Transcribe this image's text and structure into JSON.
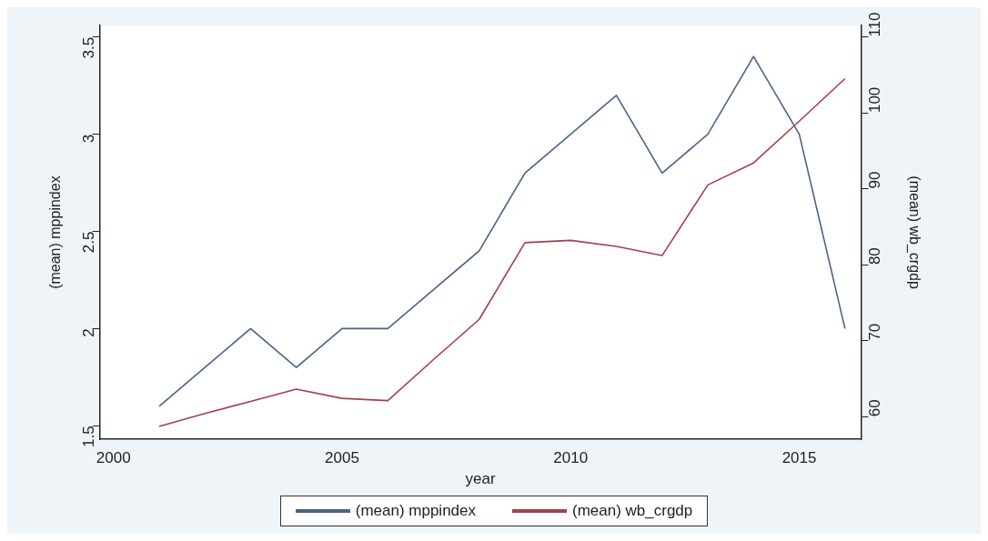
{
  "chart_data": {
    "type": "line",
    "xlabel": "year",
    "ylabel": "(mean) mppindex",
    "y2label": "(mean) wb_crgdp",
    "x": [
      2001,
      2002,
      2003,
      2004,
      2005,
      2006,
      2007,
      2008,
      2009,
      2010,
      2011,
      2012,
      2013,
      2014,
      2015,
      2016
    ],
    "series": [
      {
        "name": "(mean) mppindex",
        "color": "#4a6388",
        "values": [
          1.6,
          1.8,
          2.0,
          1.8,
          2.0,
          2.0,
          2.2,
          2.4,
          2.8,
          3.0,
          3.2,
          2.8,
          3.0,
          3.4,
          3.0,
          2.0
        ]
      },
      {
        "name": "(mean) wb_crgdp",
        "color": "#a0424c",
        "axis": "y2",
        "values": [
          58.7,
          60.4,
          62.0,
          63.6,
          62.4,
          62.1,
          67.5,
          72.8,
          82.9,
          83.2,
          82.4,
          81.2,
          90.5,
          93.4,
          98.9,
          104.5
        ]
      }
    ],
    "xlim": [
      1999.7,
      2016.35
    ],
    "xticks": [
      2000,
      2005,
      2010,
      2015
    ],
    "ylim": [
      1.43,
      3.56
    ],
    "yticks": [
      1.5,
      2,
      2.5,
      3,
      3.5
    ],
    "y2lim": [
      57,
      111.5
    ],
    "y2ticks": [
      60,
      70,
      80,
      90,
      100,
      110
    ],
    "grid": false,
    "legend": "bottom",
    "marker": "none",
    "line_style": "solid"
  }
}
